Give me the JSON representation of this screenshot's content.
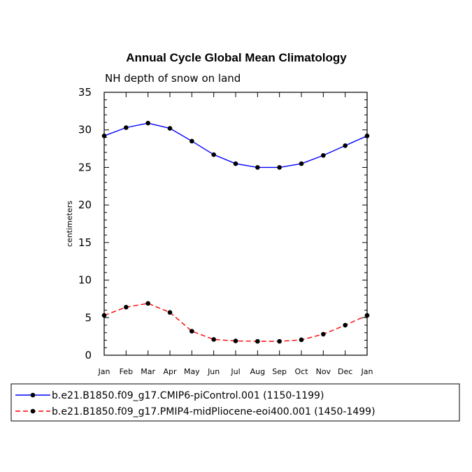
{
  "chart_data": {
    "type": "line",
    "title": "Annual Cycle Global Mean Climatology",
    "subtitle": "NH depth of snow on land",
    "ylabel": "centimeters",
    "xlabel": "",
    "categories": [
      "Jan",
      "Feb",
      "Mar",
      "Apr",
      "May",
      "Jun",
      "Jul",
      "Aug",
      "Sep",
      "Oct",
      "Nov",
      "Dec",
      "Jan"
    ],
    "ylim": [
      0,
      35
    ],
    "y_ticks": [
      "0",
      "5",
      "10",
      "15",
      "20",
      "25",
      "30",
      "35"
    ],
    "grid": false,
    "legend_position": "bottom",
    "series": [
      {
        "name": "b.e21.B1850.f09_g17.CMIP6-piControl.001 (1150-1199)",
        "color": "#0000ff",
        "line_style": "solid",
        "values": [
          29.2,
          30.3,
          30.9,
          30.2,
          28.5,
          26.7,
          25.5,
          25.0,
          25.0,
          25.5,
          26.6,
          27.9,
          29.2
        ]
      },
      {
        "name": "b.e21.B1850.f09_g17.PMIP4-midPliocene-eoi400.001 (1450-1499)",
        "color": "#ff0000",
        "line_style": "dashed",
        "values": [
          5.3,
          6.4,
          6.9,
          5.7,
          3.2,
          2.1,
          1.9,
          1.85,
          1.85,
          2.05,
          2.8,
          4.0,
          5.3
        ]
      }
    ]
  }
}
